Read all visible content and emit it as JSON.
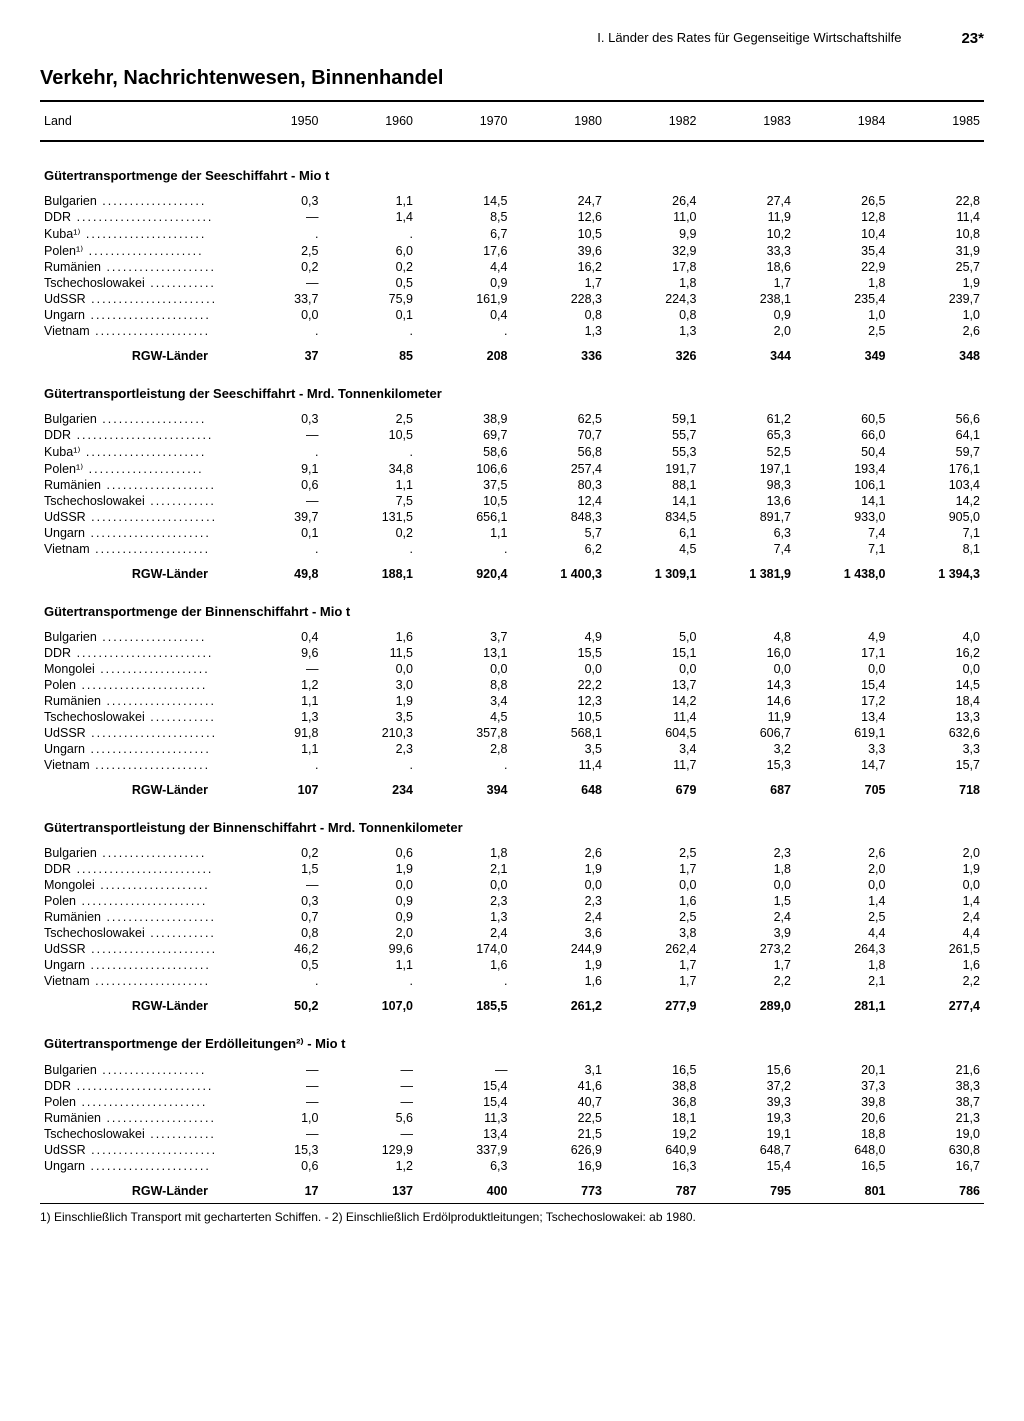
{
  "header": {
    "chapter": "I. Länder des Rates für Gegenseitige Wirtschaftshilfe",
    "page": "23*"
  },
  "title": "Verkehr, Nachrichtenwesen, Binnenhandel",
  "columns_label": "Land",
  "years": [
    "1950",
    "1960",
    "1970",
    "1980",
    "1982",
    "1983",
    "1984",
    "1985"
  ],
  "sections": [
    {
      "title": "Gütertransportmenge der Seeschiffahrt - Mio t",
      "rows": [
        {
          "c": "Bulgarien",
          "v": [
            "0,3",
            "1,1",
            "14,5",
            "24,7",
            "26,4",
            "27,4",
            "26,5",
            "22,8"
          ]
        },
        {
          "c": "DDR",
          "v": [
            "—",
            "1,4",
            "8,5",
            "12,6",
            "11,0",
            "11,9",
            "12,8",
            "11,4"
          ]
        },
        {
          "c": "Kuba¹⁾",
          "v": [
            ".",
            ".",
            "6,7",
            "10,5",
            "9,9",
            "10,2",
            "10,4",
            "10,8"
          ]
        },
        {
          "c": "Polen¹⁾",
          "v": [
            "2,5",
            "6,0",
            "17,6",
            "39,6",
            "32,9",
            "33,3",
            "35,4",
            "31,9"
          ]
        },
        {
          "c": "Rumänien",
          "v": [
            "0,2",
            "0,2",
            "4,4",
            "16,2",
            "17,8",
            "18,6",
            "22,9",
            "25,7"
          ]
        },
        {
          "c": "Tschechoslowakei",
          "v": [
            "—",
            "0,5",
            "0,9",
            "1,7",
            "1,8",
            "1,7",
            "1,8",
            "1,9"
          ]
        },
        {
          "c": "UdSSR",
          "v": [
            "33,7",
            "75,9",
            "161,9",
            "228,3",
            "224,3",
            "238,1",
            "235,4",
            "239,7"
          ]
        },
        {
          "c": "Ungarn",
          "v": [
            "0,0",
            "0,1",
            "0,4",
            "0,8",
            "0,8",
            "0,9",
            "1,0",
            "1,0"
          ]
        },
        {
          "c": "Vietnam",
          "v": [
            ".",
            ".",
            ".",
            "1,3",
            "1,3",
            "2,0",
            "2,5",
            "2,6"
          ]
        }
      ],
      "total": {
        "c": "RGW-Länder",
        "v": [
          "37",
          "85",
          "208",
          "336",
          "326",
          "344",
          "349",
          "348"
        ]
      }
    },
    {
      "title": "Gütertransportleistung der Seeschiffahrt - Mrd. Tonnenkilometer",
      "rows": [
        {
          "c": "Bulgarien",
          "v": [
            "0,3",
            "2,5",
            "38,9",
            "62,5",
            "59,1",
            "61,2",
            "60,5",
            "56,6"
          ]
        },
        {
          "c": "DDR",
          "v": [
            "—",
            "10,5",
            "69,7",
            "70,7",
            "55,7",
            "65,3",
            "66,0",
            "64,1"
          ]
        },
        {
          "c": "Kuba¹⁾",
          "v": [
            ".",
            ".",
            "58,6",
            "56,8",
            "55,3",
            "52,5",
            "50,4",
            "59,7"
          ]
        },
        {
          "c": "Polen¹⁾",
          "v": [
            "9,1",
            "34,8",
            "106,6",
            "257,4",
            "191,7",
            "197,1",
            "193,4",
            "176,1"
          ]
        },
        {
          "c": "Rumänien",
          "v": [
            "0,6",
            "1,1",
            "37,5",
            "80,3",
            "88,1",
            "98,3",
            "106,1",
            "103,4"
          ]
        },
        {
          "c": "Tschechoslowakei",
          "v": [
            "—",
            "7,5",
            "10,5",
            "12,4",
            "14,1",
            "13,6",
            "14,1",
            "14,2"
          ]
        },
        {
          "c": "UdSSR",
          "v": [
            "39,7",
            "131,5",
            "656,1",
            "848,3",
            "834,5",
            "891,7",
            "933,0",
            "905,0"
          ]
        },
        {
          "c": "Ungarn",
          "v": [
            "0,1",
            "0,2",
            "1,1",
            "5,7",
            "6,1",
            "6,3",
            "7,4",
            "7,1"
          ]
        },
        {
          "c": "Vietnam",
          "v": [
            ".",
            ".",
            ".",
            "6,2",
            "4,5",
            "7,4",
            "7,1",
            "8,1"
          ]
        }
      ],
      "total": {
        "c": "RGW-Länder",
        "v": [
          "49,8",
          "188,1",
          "920,4",
          "1 400,3",
          "1 309,1",
          "1 381,9",
          "1 438,0",
          "1 394,3"
        ]
      }
    },
    {
      "title": "Gütertransportmenge der Binnenschiffahrt - Mio t",
      "rows": [
        {
          "c": "Bulgarien",
          "v": [
            "0,4",
            "1,6",
            "3,7",
            "4,9",
            "5,0",
            "4,8",
            "4,9",
            "4,0"
          ]
        },
        {
          "c": "DDR",
          "v": [
            "9,6",
            "11,5",
            "13,1",
            "15,5",
            "15,1",
            "16,0",
            "17,1",
            "16,2"
          ]
        },
        {
          "c": "Mongolei",
          "v": [
            "—",
            "0,0",
            "0,0",
            "0,0",
            "0,0",
            "0,0",
            "0,0",
            "0,0"
          ]
        },
        {
          "c": "Polen",
          "v": [
            "1,2",
            "3,0",
            "8,8",
            "22,2",
            "13,7",
            "14,3",
            "15,4",
            "14,5"
          ]
        },
        {
          "c": "Rumänien",
          "v": [
            "1,1",
            "1,9",
            "3,4",
            "12,3",
            "14,2",
            "14,6",
            "17,2",
            "18,4"
          ]
        },
        {
          "c": "Tschechoslowakei",
          "v": [
            "1,3",
            "3,5",
            "4,5",
            "10,5",
            "11,4",
            "11,9",
            "13,4",
            "13,3"
          ]
        },
        {
          "c": "UdSSR",
          "v": [
            "91,8",
            "210,3",
            "357,8",
            "568,1",
            "604,5",
            "606,7",
            "619,1",
            "632,6"
          ]
        },
        {
          "c": "Ungarn",
          "v": [
            "1,1",
            "2,3",
            "2,8",
            "3,5",
            "3,4",
            "3,2",
            "3,3",
            "3,3"
          ]
        },
        {
          "c": "Vietnam",
          "v": [
            ".",
            ".",
            ".",
            "11,4",
            "11,7",
            "15,3",
            "14,7",
            "15,7"
          ]
        }
      ],
      "total": {
        "c": "RGW-Länder",
        "v": [
          "107",
          "234",
          "394",
          "648",
          "679",
          "687",
          "705",
          "718"
        ]
      }
    },
    {
      "title": "Gütertransportleistung der Binnenschiffahrt - Mrd. Tonnenkilometer",
      "rows": [
        {
          "c": "Bulgarien",
          "v": [
            "0,2",
            "0,6",
            "1,8",
            "2,6",
            "2,5",
            "2,3",
            "2,6",
            "2,0"
          ]
        },
        {
          "c": "DDR",
          "v": [
            "1,5",
            "1,9",
            "2,1",
            "1,9",
            "1,7",
            "1,8",
            "2,0",
            "1,9"
          ]
        },
        {
          "c": "Mongolei",
          "v": [
            "—",
            "0,0",
            "0,0",
            "0,0",
            "0,0",
            "0,0",
            "0,0",
            "0,0"
          ]
        },
        {
          "c": "Polen",
          "v": [
            "0,3",
            "0,9",
            "2,3",
            "2,3",
            "1,6",
            "1,5",
            "1,4",
            "1,4"
          ]
        },
        {
          "c": "Rumänien",
          "v": [
            "0,7",
            "0,9",
            "1,3",
            "2,4",
            "2,5",
            "2,4",
            "2,5",
            "2,4"
          ]
        },
        {
          "c": "Tschechoslowakei",
          "v": [
            "0,8",
            "2,0",
            "2,4",
            "3,6",
            "3,8",
            "3,9",
            "4,4",
            "4,4"
          ]
        },
        {
          "c": "UdSSR",
          "v": [
            "46,2",
            "99,6",
            "174,0",
            "244,9",
            "262,4",
            "273,2",
            "264,3",
            "261,5"
          ]
        },
        {
          "c": "Ungarn",
          "v": [
            "0,5",
            "1,1",
            "1,6",
            "1,9",
            "1,7",
            "1,7",
            "1,8",
            "1,6"
          ]
        },
        {
          "c": "Vietnam",
          "v": [
            ".",
            ".",
            ".",
            "1,6",
            "1,7",
            "2,2",
            "2,1",
            "2,2"
          ]
        }
      ],
      "total": {
        "c": "RGW-Länder",
        "v": [
          "50,2",
          "107,0",
          "185,5",
          "261,2",
          "277,9",
          "289,0",
          "281,1",
          "277,4"
        ]
      }
    },
    {
      "title": "Gütertransportmenge der Erdölleitungen²⁾ - Mio t",
      "rows": [
        {
          "c": "Bulgarien",
          "v": [
            "—",
            "—",
            "—",
            "3,1",
            "16,5",
            "15,6",
            "20,1",
            "21,6"
          ]
        },
        {
          "c": "DDR",
          "v": [
            "—",
            "—",
            "15,4",
            "41,6",
            "38,8",
            "37,2",
            "37,3",
            "38,3"
          ]
        },
        {
          "c": "Polen",
          "v": [
            "—",
            "—",
            "15,4",
            "40,7",
            "36,8",
            "39,3",
            "39,8",
            "38,7"
          ]
        },
        {
          "c": "Rumänien",
          "v": [
            "1,0",
            "5,6",
            "11,3",
            "22,5",
            "18,1",
            "19,3",
            "20,6",
            "21,3"
          ]
        },
        {
          "c": "Tschechoslowakei",
          "v": [
            "—",
            "—",
            "13,4",
            "21,5",
            "19,2",
            "19,1",
            "18,8",
            "19,0"
          ]
        },
        {
          "c": "UdSSR",
          "v": [
            "15,3",
            "129,9",
            "337,9",
            "626,9",
            "640,9",
            "648,7",
            "648,0",
            "630,8"
          ]
        },
        {
          "c": "Ungarn",
          "v": [
            "0,6",
            "1,2",
            "6,3",
            "16,9",
            "16,3",
            "15,4",
            "16,5",
            "16,7"
          ]
        }
      ],
      "total": {
        "c": "RGW-Länder",
        "v": [
          "17",
          "137",
          "400",
          "773",
          "787",
          "795",
          "801",
          "786"
        ]
      }
    }
  ],
  "footnote": "1) Einschließlich Transport mit gecharterten Schiffen. - 2) Einschließlich Erdölproduktleitungen; Tschechoslowakei: ab 1980."
}
